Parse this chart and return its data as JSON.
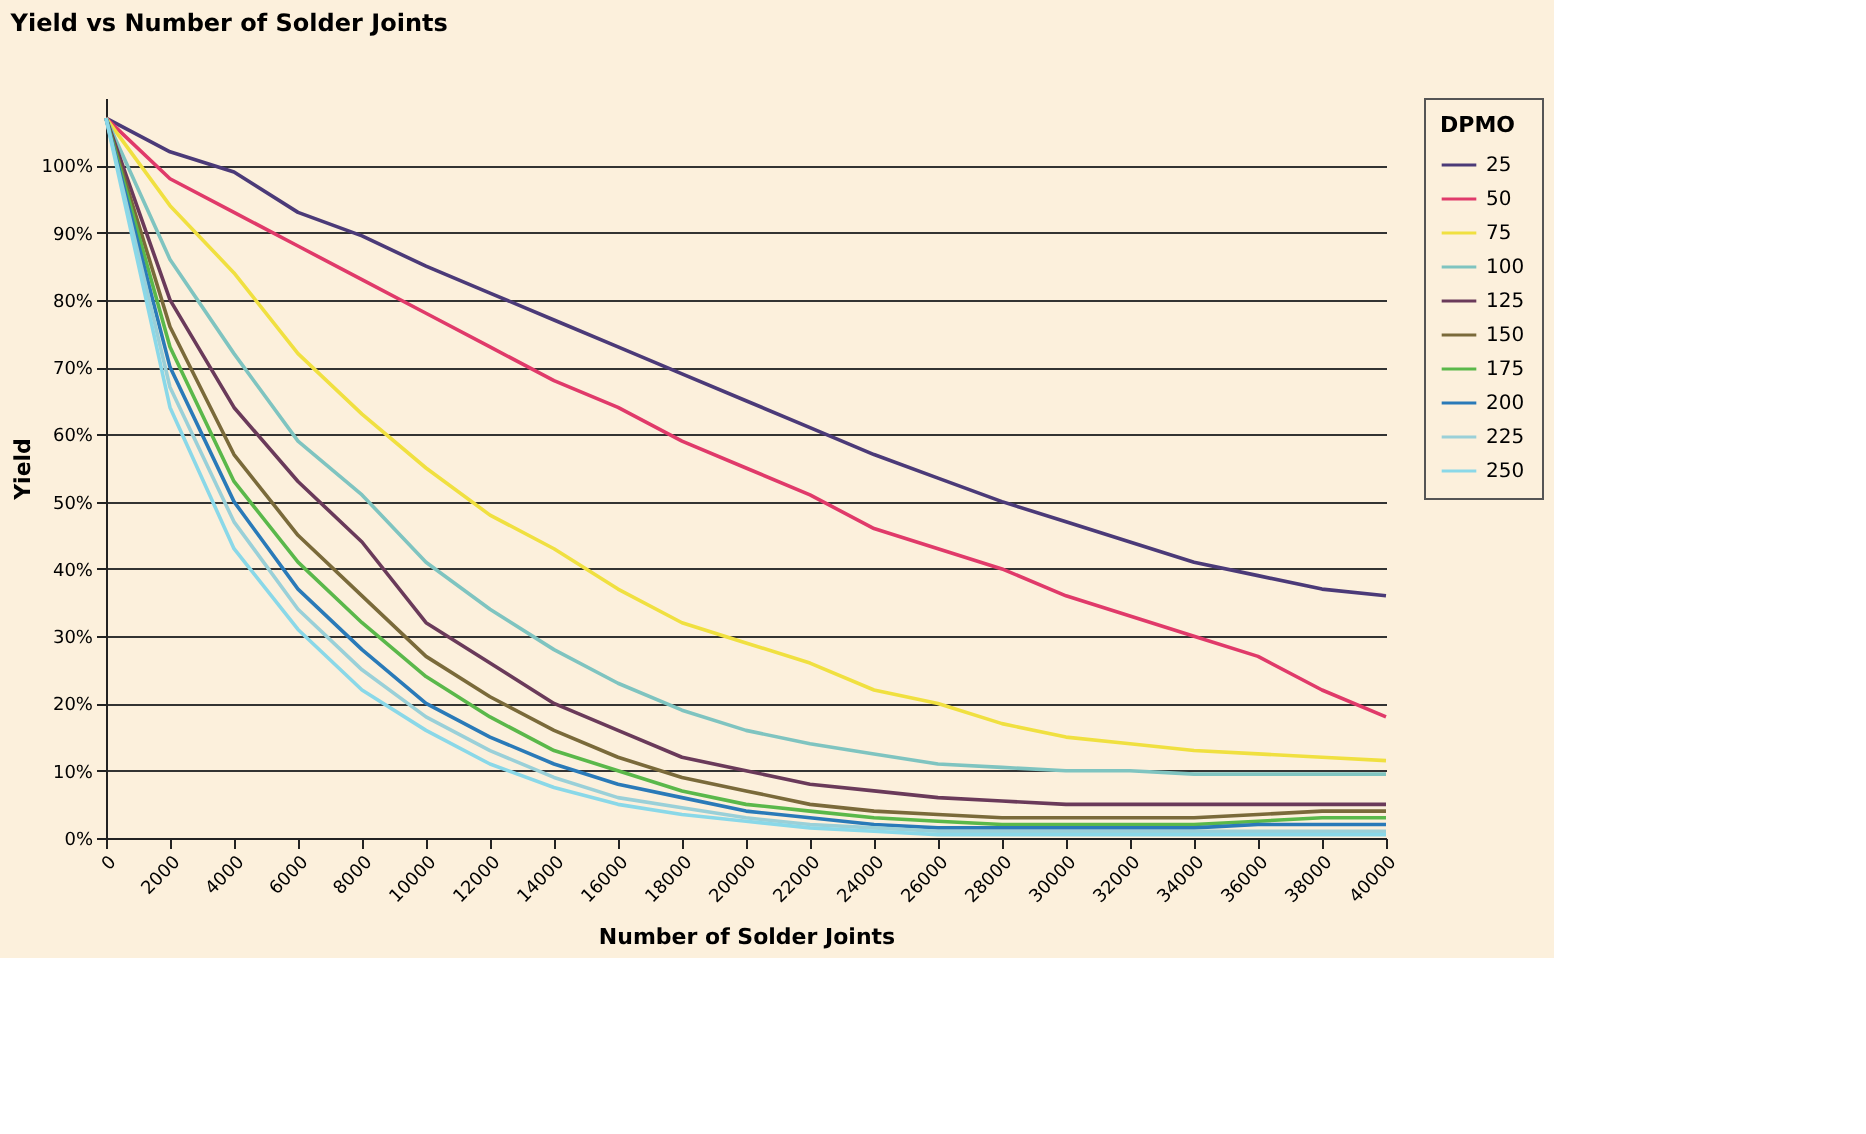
{
  "chart_data": {
    "type": "line",
    "title": "Yield vs Number of Solder Joints",
    "xlabel": "Number of Solder Joints",
    "ylabel": "Yield",
    "legend_title": "DPMO",
    "categories": [
      "0",
      "2000",
      "4000",
      "6000",
      "8000",
      "10000",
      "12000",
      "14000",
      "16000",
      "18000",
      "20000",
      "22000",
      "24000",
      "26000",
      "28000",
      "30000",
      "32000",
      "34000",
      "36000",
      "38000",
      "40000"
    ],
    "series": [
      {
        "name": "25",
        "color": "#4b3a78",
        "values": [
          107,
          102,
          99,
          93,
          89.5,
          85,
          81,
          77,
          73,
          69,
          65,
          61,
          57,
          53.5,
          50,
          47,
          44,
          41,
          39,
          37,
          36
        ]
      },
      {
        "name": "50",
        "color": "#e03a6a",
        "values": [
          107,
          98,
          93,
          88,
          83,
          78,
          73,
          68,
          64,
          59,
          55,
          51,
          46,
          43,
          40,
          36,
          33,
          30,
          27,
          22,
          18
        ]
      },
      {
        "name": "75",
        "color": "#f0e040",
        "values": [
          107,
          94,
          84,
          72,
          63,
          55,
          48,
          43,
          37,
          32,
          29,
          26,
          22,
          20,
          17,
          15,
          14,
          13,
          12.5,
          12,
          11.5
        ]
      },
      {
        "name": "100",
        "color": "#7fc4c0",
        "values": [
          107,
          86,
          72,
          59,
          51,
          41,
          34,
          28,
          23,
          19,
          16,
          14,
          12.5,
          11,
          10.5,
          10,
          10,
          9.5,
          9.5,
          9.5,
          9.5
        ]
      },
      {
        "name": "125",
        "color": "#6a3a5a",
        "values": [
          107,
          80,
          64,
          53,
          44,
          32,
          26,
          20,
          16,
          12,
          10,
          8,
          7,
          6,
          5.5,
          5,
          5,
          5,
          5,
          5,
          5
        ]
      },
      {
        "name": "150",
        "color": "#7a6a3a",
        "values": [
          107,
          76,
          57,
          45,
          36,
          27,
          21,
          16,
          12,
          9,
          7,
          5,
          4,
          3.5,
          3,
          3,
          3,
          3,
          3.5,
          4,
          4
        ]
      },
      {
        "name": "175",
        "color": "#5ab84a",
        "values": [
          107,
          73,
          53,
          41,
          32,
          24,
          18,
          13,
          10,
          7,
          5,
          4,
          3,
          2.5,
          2,
          2,
          2,
          2,
          2.5,
          3,
          3
        ]
      },
      {
        "name": "200",
        "color": "#2a7ab8",
        "values": [
          107,
          70,
          50,
          37,
          28,
          20,
          15,
          11,
          8,
          6,
          4,
          3,
          2,
          1.5,
          1.5,
          1.5,
          1.5,
          1.5,
          2,
          2,
          2
        ]
      },
      {
        "name": "225",
        "color": "#9ad0d8",
        "values": [
          107,
          67,
          47,
          34,
          25,
          18,
          13,
          9,
          6,
          4.5,
          3,
          2,
          1.5,
          1,
          1,
          1,
          1,
          1,
          1,
          1,
          1
        ]
      },
      {
        "name": "250",
        "color": "#8ad8e8",
        "values": [
          107,
          64,
          43,
          31,
          22,
          16,
          11,
          7.5,
          5,
          3.5,
          2.5,
          1.5,
          1,
          0.5,
          0.5,
          0.5,
          0.5,
          0.5,
          0.5,
          0.5,
          0.5
        ]
      }
    ],
    "ylim": [
      0,
      110
    ],
    "yticks": [
      {
        "value": 0,
        "label": "0%"
      },
      {
        "value": 10,
        "label": "10%"
      },
      {
        "value": 20,
        "label": "20%"
      },
      {
        "value": 30,
        "label": "30%"
      },
      {
        "value": 40,
        "label": "40%"
      },
      {
        "value": 50,
        "label": "50%"
      },
      {
        "value": 60,
        "label": "60%"
      },
      {
        "value": 70,
        "label": "70%"
      },
      {
        "value": 80,
        "label": "80%"
      },
      {
        "value": 90,
        "label": "90%"
      },
      {
        "value": 100,
        "label": "100%"
      }
    ],
    "grid": "y",
    "legend": "right",
    "marker": "none",
    "line_style": "solid"
  }
}
